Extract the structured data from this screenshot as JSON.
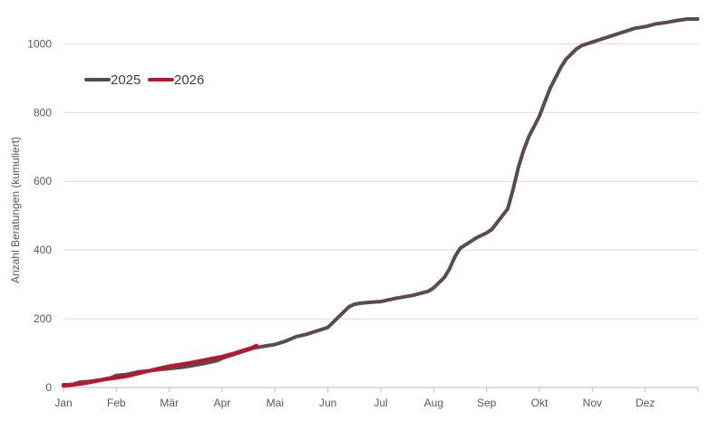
{
  "chart_data": {
    "type": "line",
    "title": "",
    "xlabel": "",
    "ylabel": "Anzahl Beratungen (kumuliert)",
    "categories": [
      "Jan",
      "Feb",
      "Mär",
      "Apr",
      "Mai",
      "Jun",
      "Jul",
      "Aug",
      "Sep",
      "Okt",
      "Nov",
      "Dez"
    ],
    "ylim": [
      0,
      1080
    ],
    "yticks": [
      0,
      200,
      400,
      600,
      800,
      1000
    ],
    "grid": true,
    "legend_position": "top-left",
    "series": [
      {
        "name": "2025",
        "color": "#5b4c4a",
        "x": [
          0,
          0.1,
          0.2,
          0.3,
          0.5,
          0.7,
          0.9,
          1.0,
          1.2,
          1.4,
          1.6,
          1.8,
          2.0,
          2.3,
          2.6,
          2.9,
          3.0,
          3.2,
          3.4,
          3.6,
          3.8,
          4.0,
          4.2,
          4.4,
          4.6,
          4.8,
          5.0,
          5.1,
          5.2,
          5.3,
          5.4,
          5.5,
          5.6,
          5.8,
          6.0,
          6.3,
          6.6,
          6.9,
          7.0,
          7.1,
          7.2,
          7.3,
          7.4,
          7.5,
          7.6,
          7.8,
          8.0,
          8.1,
          8.2,
          8.3,
          8.4,
          8.5,
          8.6,
          8.7,
          8.8,
          8.9,
          9.0,
          9.1,
          9.2,
          9.3,
          9.4,
          9.5,
          9.6,
          9.7,
          9.8,
          9.9,
          10.0,
          10.2,
          10.4,
          10.6,
          10.8,
          11.0,
          11.2,
          11.4,
          11.6,
          11.8,
          11.99
        ],
        "values": [
          8,
          8,
          10,
          15,
          18,
          22,
          28,
          35,
          38,
          45,
          48,
          52,
          55,
          60,
          68,
          78,
          85,
          95,
          105,
          115,
          120,
          125,
          135,
          148,
          155,
          165,
          175,
          190,
          205,
          220,
          235,
          242,
          245,
          248,
          250,
          260,
          268,
          280,
          290,
          305,
          320,
          345,
          380,
          405,
          415,
          435,
          450,
          460,
          480,
          500,
          520,
          575,
          640,
          690,
          730,
          760,
          790,
          830,
          870,
          900,
          930,
          955,
          970,
          985,
          995,
          1000,
          1005,
          1015,
          1025,
          1035,
          1045,
          1050,
          1058,
          1062,
          1068,
          1072,
          1072
        ]
      },
      {
        "name": "2026",
        "color": "#c0142e",
        "x": [
          0,
          0.2,
          0.4,
          0.6,
          0.8,
          1.0,
          1.2,
          1.4,
          1.6,
          1.8,
          2.0,
          2.2,
          2.4,
          2.6,
          2.8,
          3.0,
          3.2,
          3.4,
          3.55,
          3.65
        ],
        "values": [
          5,
          8,
          12,
          18,
          24,
          28,
          33,
          40,
          48,
          55,
          62,
          67,
          72,
          78,
          84,
          90,
          98,
          108,
          115,
          122
        ]
      }
    ]
  }
}
